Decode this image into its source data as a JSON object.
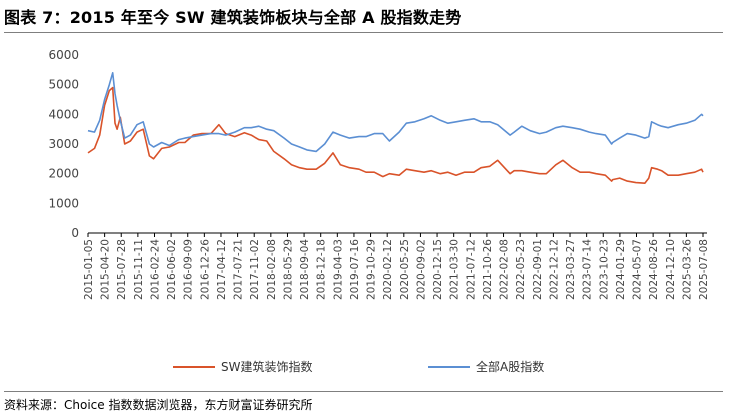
{
  "header": {
    "title": "图表 7：2015 年至今 SW 建筑装饰板块与全部 A 股指数走势"
  },
  "footer": {
    "source": "资料来源：Choice 指数数据浏览器，东方财富证券研究所"
  },
  "colors": {
    "series_sw": "#D9532A",
    "series_all_a": "#5B8FD3",
    "axis": "#000000"
  },
  "chart_data": {
    "type": "line",
    "ylim": [
      0,
      6000
    ],
    "yticks": [
      "0",
      "1000",
      "2000",
      "3000",
      "4000",
      "5000",
      "6000"
    ],
    "x_tick_labels": [
      "2015-01-05",
      "2015-04-20",
      "2015-07-28",
      "2015-11-11",
      "2016-02-24",
      "2016-06-02",
      "2016-09-09",
      "2016-12-26",
      "2017-04-12",
      "2017-07-21",
      "2017-11-02",
      "2018-02-08",
      "2018-05-29",
      "2018-09-04",
      "2018-12-18",
      "2019-04-03",
      "2019-07-16",
      "2019-10-29",
      "2020-02-12",
      "2020-05-25",
      "2020-09-02",
      "2020-12-15",
      "2021-03-30",
      "2021-07-12",
      "2021-10-26",
      "2022-02-08",
      "2022-05-23",
      "2022-09-01",
      "2022-12-12",
      "2023-03-27",
      "2023-07-14",
      "2023-10-23",
      "2024-01-29",
      "2024-05-07",
      "2024-08-26",
      "2024-12-10",
      "2025-03-26",
      "2025-07-08"
    ],
    "x_range": [
      "2015-01-05",
      "2025-08-29"
    ],
    "series": [
      {
        "name": "SW建筑装饰指数",
        "color": "#D9532A",
        "x": [
          "2015-01-05",
          "2015-02-15",
          "2015-03-20",
          "2015-04-20",
          "2015-05-20",
          "2015-06-10",
          "2015-06-25",
          "2015-07-08",
          "2015-07-28",
          "2015-08-25",
          "2015-09-30",
          "2015-11-11",
          "2015-12-20",
          "2016-01-28",
          "2016-02-24",
          "2016-04-15",
          "2016-06-02",
          "2016-08-01",
          "2016-09-09",
          "2016-11-01",
          "2016-12-26",
          "2017-02-20",
          "2017-04-12",
          "2017-05-25",
          "2017-07-21",
          "2017-09-20",
          "2017-11-02",
          "2017-12-20",
          "2018-02-08",
          "2018-03-25",
          "2018-05-29",
          "2018-07-15",
          "2018-09-04",
          "2018-10-20",
          "2018-12-18",
          "2019-02-10",
          "2019-04-03",
          "2019-05-20",
          "2019-07-16",
          "2019-09-15",
          "2019-10-29",
          "2019-12-20",
          "2020-02-12",
          "2020-03-25",
          "2020-05-25",
          "2020-07-10",
          "2020-09-02",
          "2020-10-30",
          "2020-12-15",
          "2021-02-10",
          "2021-03-30",
          "2021-05-20",
          "2021-07-12",
          "2021-09-10",
          "2021-10-26",
          "2021-12-20",
          "2022-02-08",
          "2022-04-27",
          "2022-05-23",
          "2022-07-10",
          "2022-09-01",
          "2022-10-31",
          "2022-12-12",
          "2023-02-10",
          "2023-03-27",
          "2023-05-25",
          "2023-07-14",
          "2023-09-10",
          "2023-10-23",
          "2023-12-20",
          "2024-01-29",
          "2024-02-05",
          "2024-03-20",
          "2024-05-07",
          "2024-07-01",
          "2024-08-26",
          "2024-09-20",
          "2024-10-08",
          "2024-11-15",
          "2024-12-10",
          "2025-01-20",
          "2025-03-26",
          "2025-05-15",
          "2025-07-08",
          "2025-08-20",
          "2025-08-29"
        ],
        "values": [
          2700,
          2850,
          3300,
          4300,
          4800,
          4900,
          3700,
          3500,
          3900,
          3000,
          3100,
          3400,
          3500,
          2600,
          2500,
          2850,
          2900,
          3050,
          3050,
          3300,
          3350,
          3350,
          3650,
          3350,
          3250,
          3380,
          3300,
          3150,
          3100,
          2750,
          2500,
          2300,
          2200,
          2150,
          2150,
          2350,
          2700,
          2300,
          2200,
          2150,
          2050,
          2050,
          1900,
          2000,
          1950,
          2150,
          2100,
          2050,
          2100,
          2000,
          2050,
          1950,
          2050,
          2050,
          2200,
          2250,
          2450,
          2000,
          2100,
          2100,
          2050,
          2000,
          2000,
          2300,
          2450,
          2200,
          2050,
          2050,
          2000,
          1950,
          1750,
          1800,
          1850,
          1750,
          1700,
          1680,
          1850,
          2200,
          2150,
          2100,
          1950,
          1950,
          2000,
          2050,
          2150,
          2050
        ]
      },
      {
        "name": "全部A股指数",
        "color": "#5B8FD3",
        "x": [
          "2015-01-05",
          "2015-02-15",
          "2015-03-20",
          "2015-04-20",
          "2015-05-20",
          "2015-06-10",
          "2015-06-25",
          "2015-07-08",
          "2015-07-28",
          "2015-08-25",
          "2015-09-30",
          "2015-11-11",
          "2015-12-20",
          "2016-01-28",
          "2016-02-24",
          "2016-04-15",
          "2016-06-02",
          "2016-08-01",
          "2016-09-09",
          "2016-11-01",
          "2016-12-26",
          "2017-02-20",
          "2017-04-12",
          "2017-05-25",
          "2017-07-21",
          "2017-09-20",
          "2017-11-02",
          "2017-12-20",
          "2018-02-08",
          "2018-03-25",
          "2018-05-29",
          "2018-07-15",
          "2018-09-04",
          "2018-10-20",
          "2018-12-18",
          "2019-02-10",
          "2019-04-03",
          "2019-05-20",
          "2019-07-16",
          "2019-09-15",
          "2019-10-29",
          "2019-12-20",
          "2020-02-12",
          "2020-03-25",
          "2020-05-25",
          "2020-07-10",
          "2020-09-02",
          "2020-10-30",
          "2020-12-15",
          "2021-02-10",
          "2021-03-30",
          "2021-05-20",
          "2021-07-12",
          "2021-09-10",
          "2021-10-26",
          "2021-12-20",
          "2022-02-08",
          "2022-04-27",
          "2022-05-23",
          "2022-07-10",
          "2022-09-01",
          "2022-10-31",
          "2022-12-12",
          "2023-02-10",
          "2023-03-27",
          "2023-05-25",
          "2023-07-14",
          "2023-09-10",
          "2023-10-23",
          "2023-12-20",
          "2024-01-29",
          "2024-02-05",
          "2024-03-20",
          "2024-05-07",
          "2024-07-01",
          "2024-08-26",
          "2024-09-20",
          "2024-10-08",
          "2024-11-15",
          "2024-12-10",
          "2025-01-20",
          "2025-03-26",
          "2025-05-15",
          "2025-07-08",
          "2025-08-20",
          "2025-08-29"
        ],
        "values": [
          3450,
          3400,
          3800,
          4500,
          5000,
          5400,
          4700,
          4300,
          3800,
          3200,
          3300,
          3650,
          3750,
          3000,
          2900,
          3050,
          2950,
          3150,
          3200,
          3250,
          3300,
          3350,
          3350,
          3300,
          3400,
          3550,
          3550,
          3600,
          3500,
          3450,
          3200,
          3000,
          2900,
          2800,
          2750,
          3000,
          3400,
          3300,
          3200,
          3250,
          3250,
          3350,
          3350,
          3100,
          3400,
          3700,
          3750,
          3850,
          3950,
          3800,
          3700,
          3750,
          3800,
          3850,
          3750,
          3750,
          3650,
          3300,
          3400,
          3600,
          3450,
          3350,
          3400,
          3550,
          3600,
          3550,
          3500,
          3400,
          3350,
          3300,
          3000,
          3050,
          3200,
          3350,
          3300,
          3200,
          3250,
          3750,
          3650,
          3600,
          3550,
          3650,
          3700,
          3800,
          4000,
          3950
        ]
      }
    ]
  }
}
